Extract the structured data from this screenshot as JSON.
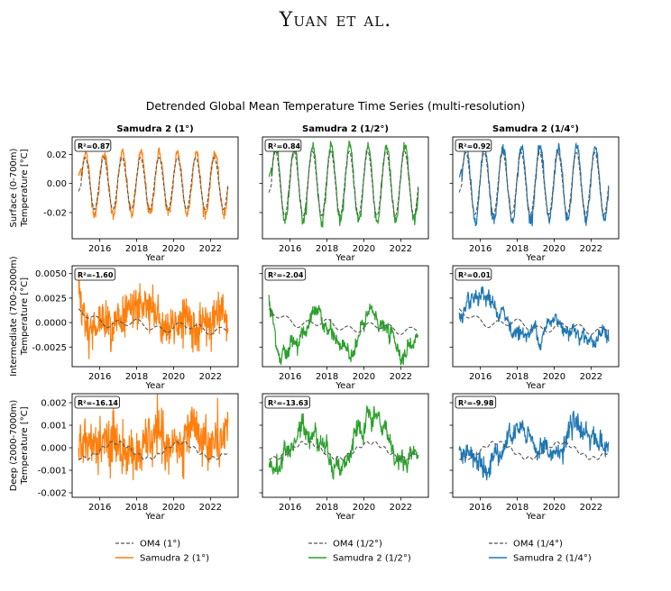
{
  "header": {
    "text": "Yuan et al."
  },
  "figure": {
    "suptitle": "Detrended Global Mean Temperature Time Series (multi-resolution)",
    "column_titles": [
      "Samudra 2 (1$^\\circ$)",
      "Samudra 2 (1/2$^\\circ$)",
      "Samudra 2 (1/4$^\\circ$)"
    ],
    "column_titles_display": [
      "Samudra 2 (1°)",
      "Samudra 2 (1/2°)",
      "Samudra 2 (1/4°)"
    ],
    "row_ylabels": [
      [
        "Surface (0-700m)",
        "Temperature [°C]"
      ],
      [
        "Intermediate (700-2000m)",
        "Temperature [°C]"
      ],
      [
        "Deep (2000-7000m)",
        "Temperature [°C]"
      ]
    ],
    "xlabel": "Year",
    "legends": [
      [
        "OM4 (1°)",
        "Samudra 2 (1°)"
      ],
      [
        "OM4 (1/2°)",
        "Samudra 2 (1/2°)"
      ],
      [
        "OM4 (1/4°)",
        "Samudra 2 (1/4°)"
      ]
    ],
    "colors": {
      "om4": "#555555",
      "col0": "#ff7f0e",
      "col1": "#2ca02c",
      "col2": "#1f77b4"
    }
  },
  "chart_data": {
    "type": "line",
    "x_ticks": [
      "2016",
      "2018",
      "2020",
      "2022"
    ],
    "xlim": [
      2014.5,
      2023.5
    ],
    "rows": [
      {
        "name": "surface",
        "ylim": [
          -0.038,
          0.032
        ],
        "yticks": [
          "0.02",
          "0.00",
          "-0.02"
        ],
        "ytick_values": [
          0.02,
          0.0,
          -0.02
        ],
        "r2": [
          "R²=0.87",
          "R²=0.84",
          "R²=0.92"
        ]
      },
      {
        "name": "intermediate",
        "ylim": [
          -0.0045,
          0.0058
        ],
        "yticks": [
          "0.0050",
          "0.0025",
          "0.0000",
          "-0.0025"
        ],
        "ytick_values": [
          0.005,
          0.0025,
          0.0,
          -0.0025
        ],
        "r2": [
          "R²=-1.60",
          "R²=-2.04",
          "R²=0.01"
        ]
      },
      {
        "name": "deep",
        "ylim": [
          -0.0022,
          0.0024
        ],
        "yticks": [
          "0.002",
          "0.001",
          "0.000",
          "-0.001",
          "-0.002"
        ],
        "ytick_values": [
          0.002,
          0.001,
          0.0,
          -0.001,
          -0.002
        ],
        "r2": [
          "R²=-16.14",
          "R²=-13.63",
          "R²=-9.98"
        ]
      }
    ]
  }
}
